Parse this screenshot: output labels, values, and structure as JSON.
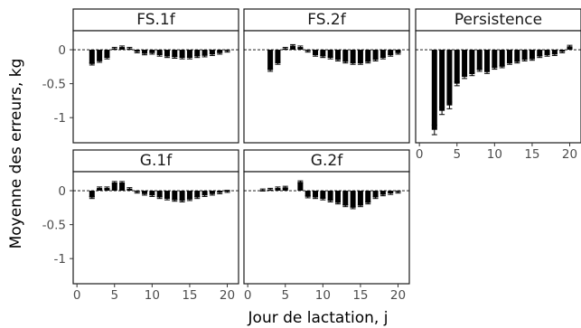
{
  "chart_data": {
    "type": "bar",
    "xlabel": "Jour de lactation, j",
    "ylabel": "Moyenne des erreurs, kg",
    "xlim": [
      -0.5,
      21.5
    ],
    "ylim": [
      -1.37,
      0.28
    ],
    "xticks": [
      0,
      5,
      10,
      15,
      20
    ],
    "yticks": [
      0,
      -0.5,
      -1
    ],
    "ytick_labels": [
      "0",
      "-0.5",
      "-1"
    ],
    "reference_line": 0,
    "error_bars": true,
    "panels": [
      {
        "name": "FS.1f",
        "x": [
          2,
          3,
          4,
          5,
          6,
          7,
          8,
          9,
          10,
          11,
          12,
          13,
          14,
          15,
          16,
          17,
          18,
          19,
          20
        ],
        "values": [
          -0.21,
          -0.17,
          -0.12,
          0.02,
          0.04,
          0.02,
          -0.03,
          -0.06,
          -0.05,
          -0.08,
          -0.1,
          -0.11,
          -0.12,
          -0.12,
          -0.1,
          -0.09,
          -0.07,
          -0.05,
          -0.02
        ]
      },
      {
        "name": "FS.2f",
        "x": [
          3,
          4,
          5,
          6,
          7,
          8,
          9,
          10,
          11,
          12,
          13,
          14,
          15,
          16,
          17,
          18,
          19,
          20
        ],
        "values": [
          -0.3,
          -0.2,
          0.02,
          0.06,
          0.04,
          -0.02,
          -0.08,
          -0.1,
          -0.12,
          -0.15,
          -0.18,
          -0.2,
          -0.2,
          -0.18,
          -0.15,
          -0.12,
          -0.08,
          -0.05
        ]
      },
      {
        "name": "Persistence",
        "x": [
          2,
          3,
          4,
          5,
          6,
          7,
          8,
          9,
          10,
          11,
          12,
          13,
          14,
          15,
          16,
          17,
          18,
          19,
          20
        ],
        "values": [
          -1.18,
          -0.9,
          -0.82,
          -0.5,
          -0.4,
          -0.36,
          -0.3,
          -0.33,
          -0.27,
          -0.25,
          -0.2,
          -0.18,
          -0.15,
          -0.14,
          -0.1,
          -0.08,
          -0.07,
          -0.03,
          0.05
        ]
      },
      {
        "name": "G.1f",
        "x": [
          2,
          3,
          4,
          5,
          6,
          7,
          8,
          9,
          10,
          11,
          12,
          13,
          14,
          15,
          16,
          17,
          18,
          19,
          20
        ],
        "values": [
          -0.1,
          0.04,
          0.04,
          0.12,
          0.12,
          0.03,
          -0.02,
          -0.05,
          -0.07,
          -0.1,
          -0.12,
          -0.14,
          -0.15,
          -0.13,
          -0.1,
          -0.07,
          -0.05,
          -0.03,
          -0.01
        ]
      },
      {
        "name": "G.2f",
        "x": [
          2,
          3,
          4,
          5,
          7,
          8,
          9,
          10,
          11,
          12,
          13,
          14,
          15,
          16,
          17,
          18,
          19,
          20
        ],
        "values": [
          0.01,
          0.02,
          0.04,
          0.05,
          0.13,
          -0.09,
          -0.1,
          -0.12,
          -0.15,
          -0.18,
          -0.22,
          -0.25,
          -0.22,
          -0.18,
          -0.1,
          -0.06,
          -0.04,
          -0.02
        ]
      }
    ]
  }
}
